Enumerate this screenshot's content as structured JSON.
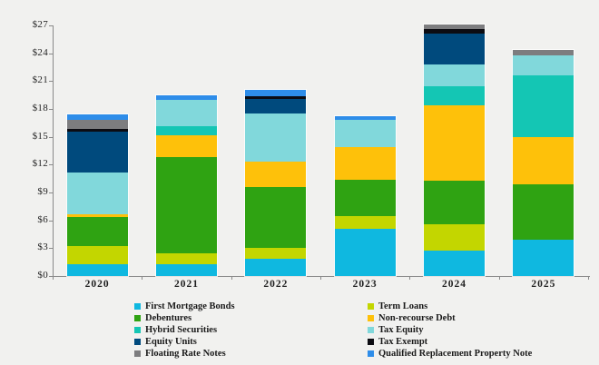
{
  "chart_data": {
    "type": "bar",
    "subtype": "stacked",
    "title": "",
    "xlabel": "",
    "ylabel": "",
    "ylabel_prefix": "$",
    "ylim": [
      0,
      27
    ],
    "yticks": [
      0,
      3,
      6,
      9,
      12,
      15,
      18,
      21,
      24,
      27
    ],
    "grid": false,
    "legend_position": "bottom-two-columns",
    "background_color": "#f1f1ef",
    "axis_color": "#8a8a8a",
    "text_color": "#1f1f1f",
    "categories": [
      "2020",
      "2021",
      "2022",
      "2023",
      "2024",
      "2025"
    ],
    "series": [
      {
        "name": "First Mortgage Bonds",
        "color": "#0fb8e0",
        "values": [
          1.3,
          1.3,
          1.9,
          5.1,
          2.7,
          3.9
        ]
      },
      {
        "name": "Term Loans",
        "color": "#c3d600",
        "values": [
          1.9,
          1.1,
          1.1,
          1.4,
          2.9,
          0
        ]
      },
      {
        "name": "Debentures",
        "color": "#2fa312",
        "values": [
          3.2,
          10.4,
          6.6,
          3.9,
          4.7,
          6.0
        ]
      },
      {
        "name": "Non-recourse Debt",
        "color": "#fec10a",
        "values": [
          0.3,
          2.4,
          2.7,
          3.5,
          8.1,
          5.1
        ]
      },
      {
        "name": "Hybrid Securities",
        "color": "#14c6b4",
        "values": [
          0,
          0.9,
          0,
          0,
          2.0,
          6.6
        ]
      },
      {
        "name": "Tax Equity",
        "color": "#81d8db",
        "values": [
          4.5,
          2.9,
          5.2,
          2.9,
          2.4,
          2.2
        ]
      },
      {
        "name": "Equity Units",
        "color": "#004a7d",
        "values": [
          4.4,
          0,
          1.6,
          0,
          3.3,
          0
        ]
      },
      {
        "name": "Tax Exempt",
        "color": "#0c0c12",
        "values": [
          0.25,
          0,
          0.25,
          0,
          0.5,
          0
        ]
      },
      {
        "name": "Floating Rate Notes",
        "color": "#7d7d7f",
        "values": [
          1.0,
          0,
          0,
          0,
          0.5,
          0.6
        ]
      },
      {
        "name": "Qualified Replacement Property Note",
        "color": "#2e8de9",
        "values": [
          0.6,
          0.45,
          0.7,
          0.4,
          0,
          0
        ]
      }
    ]
  }
}
